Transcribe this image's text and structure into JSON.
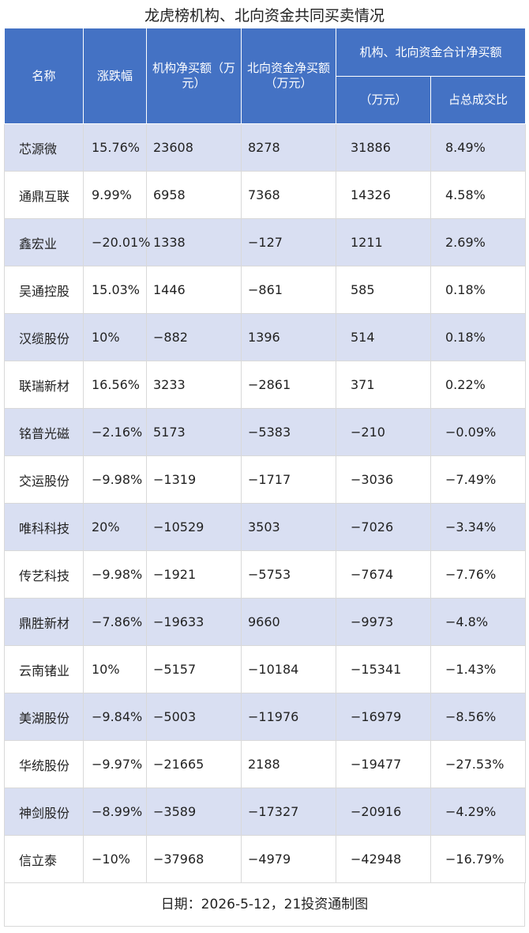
{
  "title": "龙虎榜机构、北向资金共同买卖情况",
  "header": {
    "name": "名称",
    "change": "涨跌幅",
    "inst": "机构净买额（万元）",
    "north": "北向资金净买额（万元）",
    "combined": "机构、北向资金合计净买额",
    "combined_unit": "（万元）",
    "share": "占总成交比"
  },
  "rows": [
    {
      "name": "芯源微",
      "change": "15.76%",
      "inst": "23608",
      "north": "8278",
      "total": "31886",
      "share": "8.49%"
    },
    {
      "name": "通鼎互联",
      "change": "9.99%",
      "inst": "6958",
      "north": "7368",
      "total": "14326",
      "share": "4.58%"
    },
    {
      "name": "鑫宏业",
      "change": "−20.01%",
      "inst": "1338",
      "north": "−127",
      "total": "1211",
      "share": "2.69%"
    },
    {
      "name": "吴通控股",
      "change": "15.03%",
      "inst": "1446",
      "north": "−861",
      "total": "585",
      "share": "0.18%"
    },
    {
      "name": "汉缆股份",
      "change": "10%",
      "inst": "−882",
      "north": "1396",
      "total": "514",
      "share": "0.18%"
    },
    {
      "name": "联瑞新材",
      "change": "16.56%",
      "inst": "3233",
      "north": "−2861",
      "total": "371",
      "share": "0.22%"
    },
    {
      "name": "铭普光磁",
      "change": "−2.16%",
      "inst": "5173",
      "north": "−5383",
      "total": "−210",
      "share": "−0.09%"
    },
    {
      "name": "交运股份",
      "change": "−9.98%",
      "inst": "−1319",
      "north": "−1717",
      "total": "−3036",
      "share": "−7.49%"
    },
    {
      "name": "唯科科技",
      "change": "20%",
      "inst": "−10529",
      "north": "3503",
      "total": "−7026",
      "share": "−3.34%"
    },
    {
      "name": "传艺科技",
      "change": "−9.98%",
      "inst": "−1921",
      "north": "−5753",
      "total": "−7674",
      "share": "−7.76%"
    },
    {
      "name": "鼎胜新材",
      "change": "−7.86%",
      "inst": "−19633",
      "north": "9660",
      "total": "−9973",
      "share": "−4.8%"
    },
    {
      "name": "云南锗业",
      "change": "10%",
      "inst": "−5157",
      "north": "−10184",
      "total": "−15341",
      "share": "−1.43%"
    },
    {
      "name": "美湖股份",
      "change": "−9.84%",
      "inst": "−5003",
      "north": "−11976",
      "total": "−16979",
      "share": "−8.56%"
    },
    {
      "name": "华统股份",
      "change": "−9.97%",
      "inst": "−21665",
      "north": "2188",
      "total": "−19477",
      "share": "−27.53%"
    },
    {
      "name": "神剑股份",
      "change": "−8.99%",
      "inst": "−3589",
      "north": "−17327",
      "total": "−20916",
      "share": "−4.29%"
    },
    {
      "name": "信立泰",
      "change": "−10%",
      "inst": "−37968",
      "north": "−4979",
      "total": "−42948",
      "share": "−16.79%"
    }
  ],
  "footer": "日期：2026-5-12，21投资通制图",
  "colors": {
    "header_bg": "#4472c4",
    "band": "#d9dff2"
  }
}
